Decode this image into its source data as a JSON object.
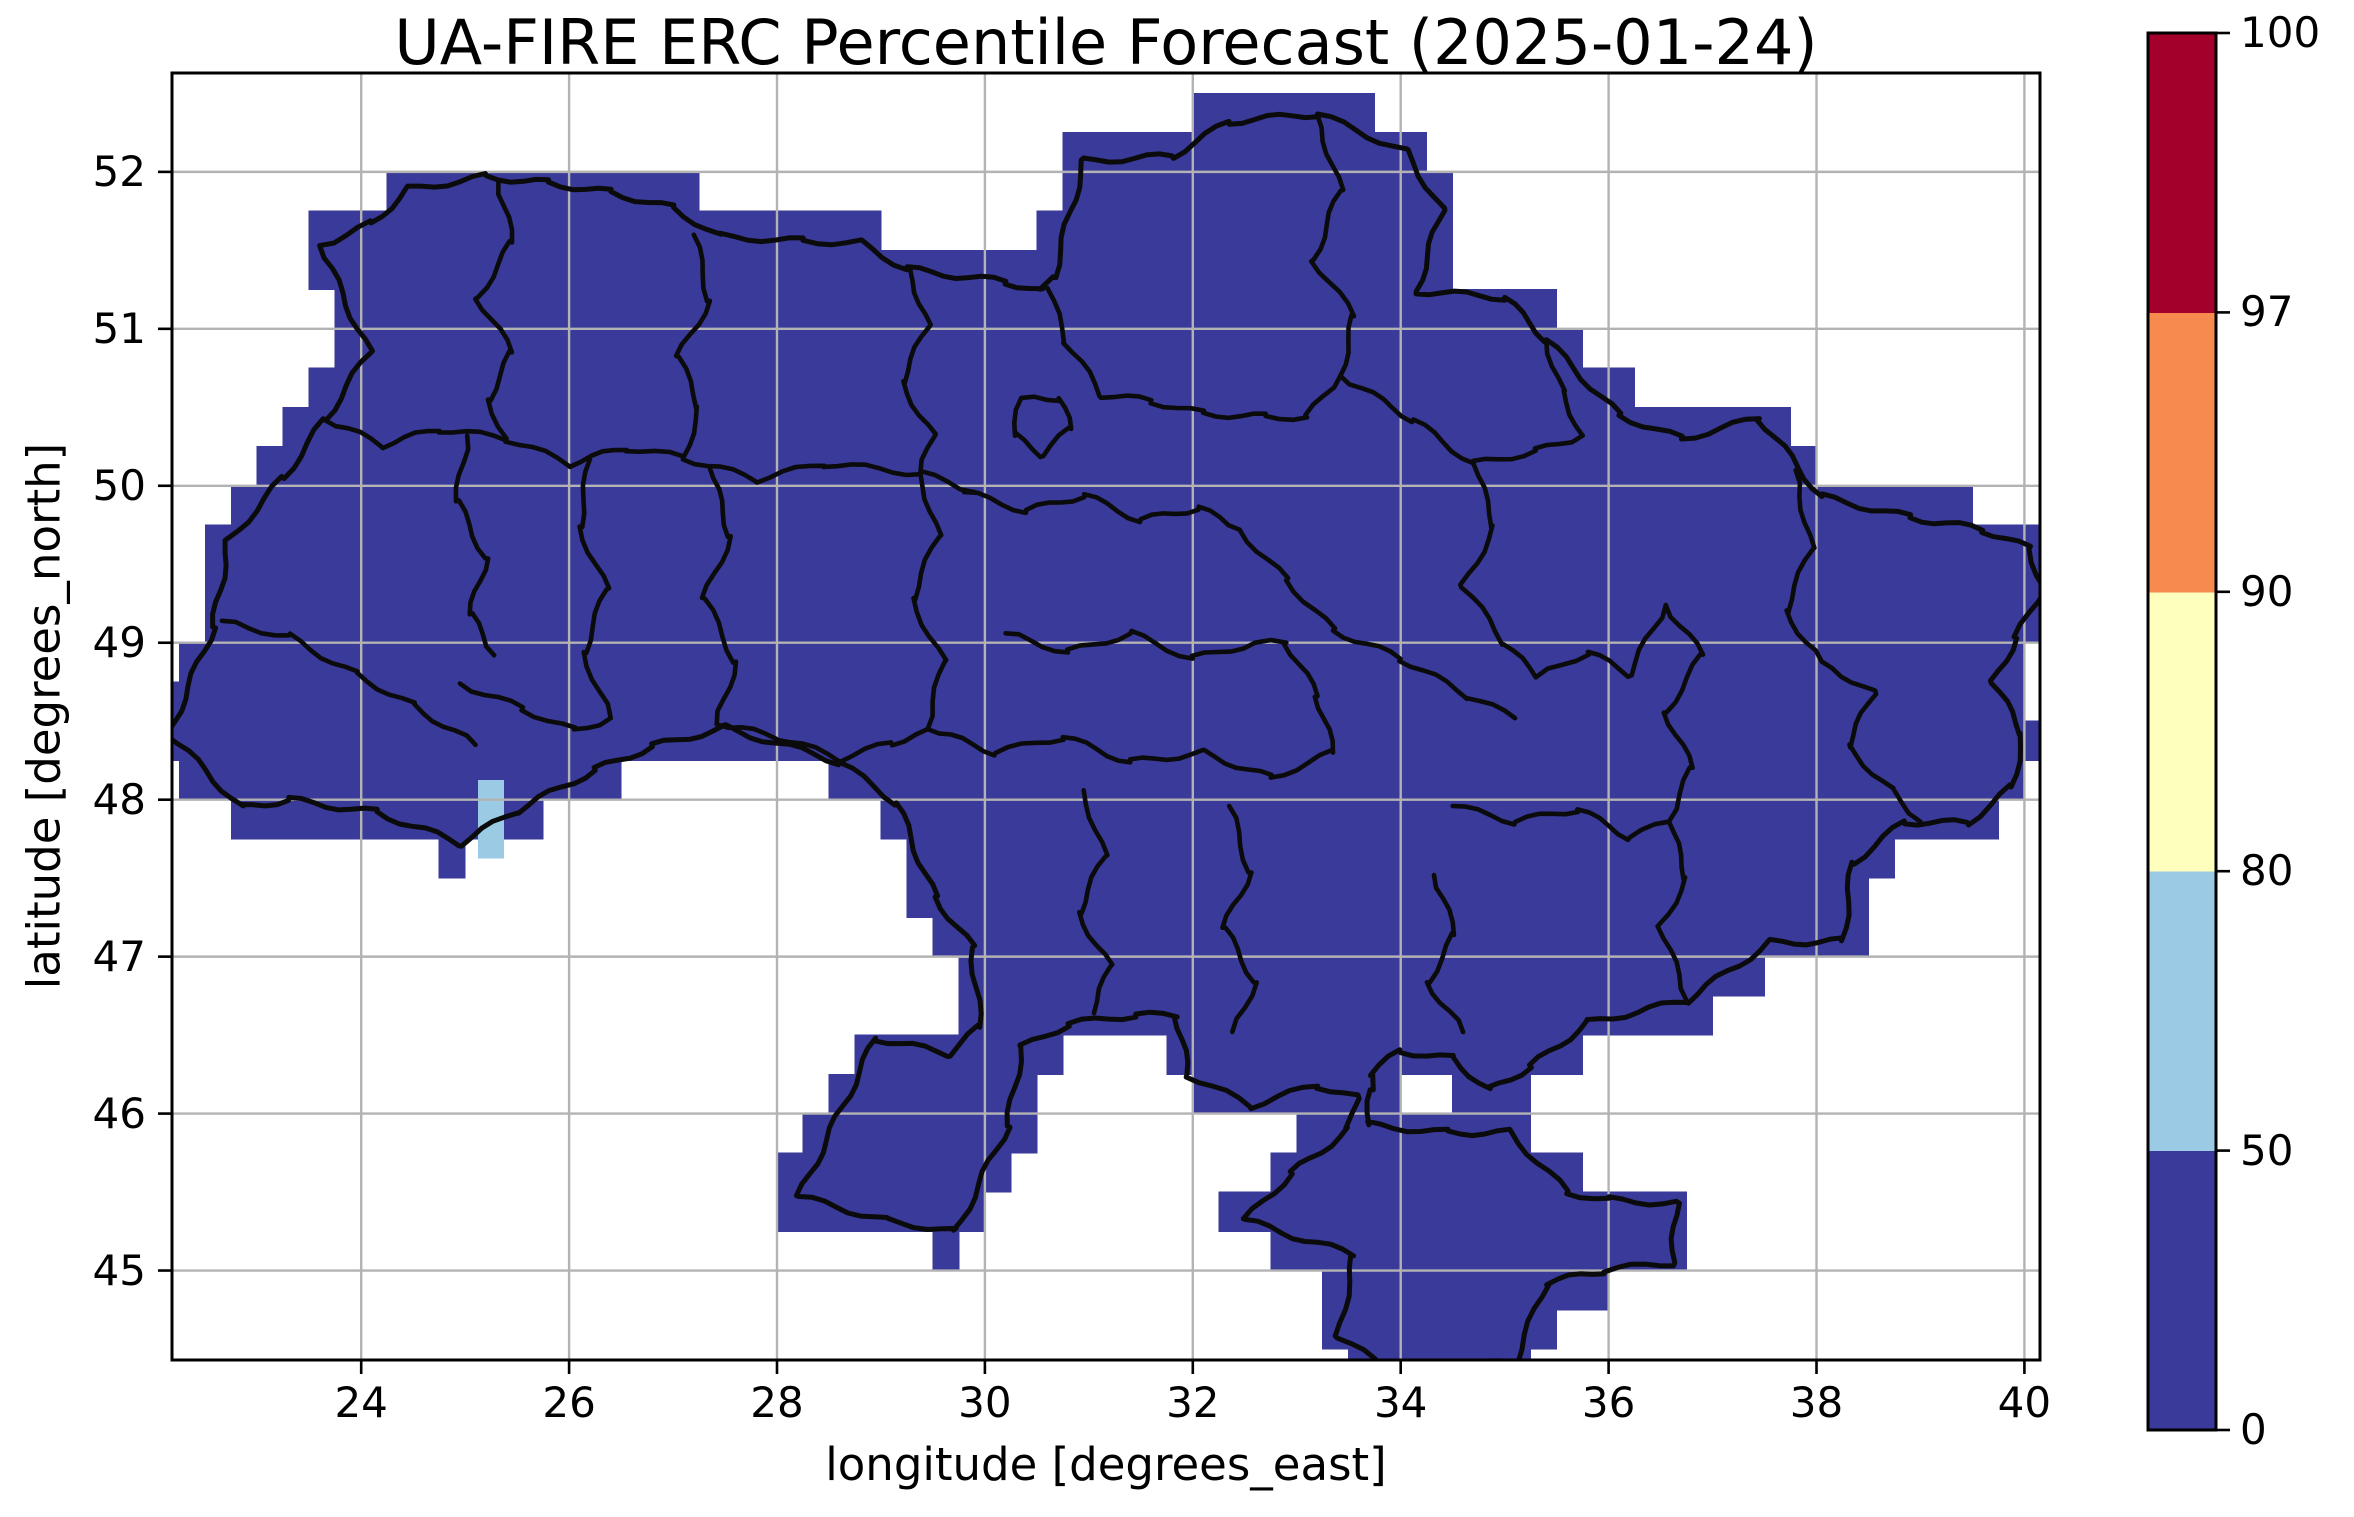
{
  "chart": {
    "title": "UA-FIRE ERC Percentile Forecast (2025-01-24)",
    "xlabel": "longitude [degrees_east]",
    "ylabel": "latitude [degrees_north]"
  },
  "chart_data": {
    "type": "heatmap",
    "title": "UA-FIRE ERC Percentile Forecast (2025-01-24)",
    "xlabel": "longitude [degrees_east]",
    "ylabel": "latitude [degrees_north]",
    "xlim": [
      22.18,
      40.15
    ],
    "ylim": [
      44.43,
      52.63
    ],
    "x_ticks": [
      24,
      26,
      28,
      30,
      32,
      34,
      36,
      38,
      40
    ],
    "y_ticks": [
      52,
      51,
      50,
      49,
      48,
      47,
      46,
      45
    ],
    "grid": true,
    "grid_color": "#b3b3b3",
    "cell_size_deg": 0.25,
    "colorbar": {
      "levels": [
        0,
        50,
        80,
        90,
        97,
        100
      ],
      "tick_labels": [
        "0",
        "50",
        "80",
        "90",
        "97",
        "100"
      ],
      "spacing": "uniform",
      "colors_low_to_high": [
        "#393a9a",
        "#9bcbe4",
        "#ffffbd",
        "#f68a4f",
        "#a3002c"
      ],
      "position": "right"
    },
    "values_summary": "Every 0.25-degree cell over Ukraine lies in the 0-50 percentile bin (dark navy) except two cells near 25.25E / 47.6-48.1N which fall in the 50-80 bin (light blue).",
    "anomaly_cells": [
      {
        "lon_range": [
          25.125,
          25.375
        ],
        "lat_range": [
          47.625,
          47.875
        ],
        "bin": "50-80"
      },
      {
        "lon_range": [
          25.125,
          25.375
        ],
        "lat_range": [
          47.875,
          48.125
        ],
        "bin": "50-80"
      }
    ],
    "base_bin": "0-50",
    "boundary_color": "#0b0b0b",
    "country_outline_lonlat": [
      [
        23.6,
        51.53
      ],
      [
        24.1,
        51.67
      ],
      [
        24.45,
        51.89
      ],
      [
        25.2,
        51.97
      ],
      [
        25.8,
        51.93
      ],
      [
        26.4,
        51.87
      ],
      [
        27.0,
        51.77
      ],
      [
        27.45,
        51.59
      ],
      [
        28.25,
        51.56
      ],
      [
        28.8,
        51.55
      ],
      [
        29.25,
        51.38
      ],
      [
        30.2,
        51.3
      ],
      [
        30.55,
        51.24
      ],
      [
        30.66,
        51.33
      ],
      [
        30.95,
        52.07
      ],
      [
        31.8,
        52.1
      ],
      [
        32.35,
        52.32
      ],
      [
        33.2,
        52.37
      ],
      [
        34.05,
        52.13
      ],
      [
        34.4,
        51.76
      ],
      [
        34.15,
        51.24
      ],
      [
        35.0,
        51.2
      ],
      [
        35.4,
        50.93
      ],
      [
        36.1,
        50.45
      ],
      [
        36.7,
        50.3
      ],
      [
        37.45,
        50.43
      ],
      [
        38.05,
        49.93
      ],
      [
        38.9,
        49.8
      ],
      [
        39.6,
        49.72
      ],
      [
        40.05,
        49.6
      ],
      [
        40.18,
        49.35
      ],
      [
        39.92,
        49.03
      ],
      [
        39.7,
        48.75
      ],
      [
        39.98,
        48.42
      ],
      [
        39.88,
        48.08
      ],
      [
        39.45,
        47.85
      ],
      [
        38.85,
        47.86
      ],
      [
        38.35,
        47.6
      ],
      [
        38.25,
        47.1
      ],
      [
        37.55,
        47.09
      ],
      [
        36.75,
        46.72
      ],
      [
        35.8,
        46.58
      ],
      [
        35.25,
        46.3
      ],
      [
        34.85,
        46.15
      ],
      [
        34.5,
        46.35
      ],
      [
        34.0,
        46.4
      ],
      [
        33.7,
        46.25
      ],
      [
        33.72,
        46.15
      ],
      [
        33.68,
        45.93
      ],
      [
        34.45,
        45.88
      ],
      [
        35.05,
        45.88
      ],
      [
        35.6,
        45.5
      ],
      [
        36.0,
        45.45
      ],
      [
        36.65,
        45.43
      ],
      [
        36.62,
        45.05
      ],
      [
        35.95,
        45.0
      ],
      [
        35.4,
        44.92
      ],
      [
        35.1,
        44.42
      ],
      [
        34.45,
        44.38
      ],
      [
        33.85,
        44.38
      ],
      [
        33.4,
        44.58
      ],
      [
        33.55,
        45.1
      ],
      [
        32.5,
        45.32
      ],
      [
        32.95,
        45.62
      ],
      [
        33.5,
        45.9
      ],
      [
        33.58,
        46.1
      ],
      [
        33.2,
        46.18
      ],
      [
        32.55,
        46.05
      ],
      [
        31.95,
        46.25
      ],
      [
        31.85,
        46.62
      ],
      [
        31.45,
        46.63
      ],
      [
        30.8,
        46.57
      ],
      [
        30.35,
        46.42
      ],
      [
        30.22,
        45.92
      ],
      [
        29.72,
        45.25
      ],
      [
        29.05,
        45.32
      ],
      [
        28.21,
        45.47
      ],
      [
        28.95,
        46.48
      ],
      [
        29.65,
        46.38
      ],
      [
        29.95,
        46.55
      ],
      [
        29.88,
        47.06
      ],
      [
        29.52,
        47.38
      ],
      [
        29.15,
        47.98
      ],
      [
        28.6,
        48.24
      ],
      [
        27.5,
        48.46
      ],
      [
        26.8,
        48.34
      ],
      [
        26.25,
        48.19
      ],
      [
        25.5,
        47.93
      ],
      [
        24.95,
        47.72
      ],
      [
        24.15,
        47.92
      ],
      [
        23.3,
        48.0
      ],
      [
        22.85,
        47.95
      ],
      [
        22.15,
        48.42
      ],
      [
        22.58,
        49.1
      ],
      [
        22.72,
        49.65
      ],
      [
        23.25,
        50.05
      ],
      [
        23.65,
        50.42
      ],
      [
        24.08,
        50.85
      ],
      [
        23.6,
        51.53
      ]
    ],
    "admin_boundaries_lonlat": [
      [
        [
          25.32,
          51.94
        ],
        [
          25.45,
          51.55
        ],
        [
          25.12,
          51.2
        ],
        [
          25.45,
          50.85
        ],
        [
          25.22,
          50.55
        ],
        [
          25.4,
          50.3
        ]
      ],
      [
        [
          27.2,
          51.6
        ],
        [
          27.35,
          51.18
        ],
        [
          27.05,
          50.82
        ],
        [
          27.25,
          50.5
        ],
        [
          27.1,
          50.18
        ]
      ],
      [
        [
          29.28,
          51.38
        ],
        [
          29.45,
          51.02
        ],
        [
          29.2,
          50.66
        ],
        [
          29.5,
          50.32
        ],
        [
          29.38,
          50.08
        ]
      ],
      [
        [
          23.65,
          50.42
        ],
        [
          24.2,
          50.26
        ],
        [
          24.75,
          50.36
        ],
        [
          25.4,
          50.3
        ],
        [
          26.0,
          50.14
        ],
        [
          26.55,
          50.24
        ],
        [
          27.1,
          50.18
        ],
        [
          27.8,
          50.04
        ],
        [
          28.45,
          50.14
        ],
        [
          29.38,
          50.08
        ],
        [
          29.9,
          49.96
        ]
      ],
      [
        [
          25.02,
          50.32
        ],
        [
          24.92,
          49.9
        ],
        [
          25.2,
          49.54
        ],
        [
          25.05,
          49.18
        ],
        [
          25.28,
          48.92
        ]
      ],
      [
        [
          26.2,
          50.17
        ],
        [
          26.1,
          49.74
        ],
        [
          26.36,
          49.34
        ],
        [
          26.14,
          48.94
        ],
        [
          26.4,
          48.52
        ]
      ],
      [
        [
          27.35,
          50.12
        ],
        [
          27.55,
          49.68
        ],
        [
          27.3,
          49.28
        ],
        [
          27.6,
          48.88
        ],
        [
          27.42,
          48.48
        ]
      ],
      [
        [
          22.66,
          49.14
        ],
        [
          23.3,
          49.04
        ],
        [
          23.95,
          48.8
        ],
        [
          24.5,
          48.6
        ],
        [
          25.1,
          48.35
        ]
      ],
      [
        [
          24.95,
          48.74
        ],
        [
          25.55,
          48.58
        ],
        [
          26.05,
          48.44
        ],
        [
          26.4,
          48.52
        ]
      ],
      [
        [
          30.6,
          51.26
        ],
        [
          30.78,
          50.92
        ],
        [
          31.12,
          50.58
        ],
        [
          31.6,
          50.54
        ],
        [
          32.1,
          50.46
        ],
        [
          32.7,
          50.44
        ],
        [
          33.1,
          50.44
        ],
        [
          33.42,
          50.7
        ]
      ],
      [
        [
          33.2,
          52.36
        ],
        [
          33.42,
          51.88
        ],
        [
          33.16,
          51.44
        ],
        [
          33.55,
          51.08
        ],
        [
          33.42,
          50.7
        ]
      ],
      [
        [
          33.42,
          50.7
        ],
        [
          34.12,
          50.42
        ],
        [
          34.7,
          50.14
        ],
        [
          35.3,
          50.22
        ],
        [
          35.75,
          50.32
        ]
      ],
      [
        [
          29.8,
          49.96
        ],
        [
          30.4,
          49.84
        ],
        [
          30.95,
          49.94
        ],
        [
          31.5,
          49.78
        ],
        [
          32.05,
          49.86
        ],
        [
          32.45,
          49.72
        ]
      ],
      [
        [
          29.38,
          50.08
        ],
        [
          29.55,
          49.68
        ],
        [
          29.3,
          49.28
        ],
        [
          29.6,
          48.88
        ],
        [
          29.45,
          48.45
        ]
      ],
      [
        [
          27.42,
          48.48
        ],
        [
          28.0,
          48.4
        ],
        [
          28.6,
          48.26
        ],
        [
          29.1,
          48.36
        ],
        [
          29.45,
          48.45
        ]
      ],
      [
        [
          30.2,
          49.06
        ],
        [
          30.8,
          48.94
        ],
        [
          31.4,
          49.06
        ],
        [
          32.0,
          48.9
        ],
        [
          32.6,
          49.0
        ]
      ],
      [
        [
          32.45,
          49.72
        ],
        [
          32.9,
          49.4
        ],
        [
          33.35,
          49.08
        ],
        [
          34.0,
          48.9
        ],
        [
          34.65,
          48.66
        ],
        [
          35.1,
          48.52
        ]
      ],
      [
        [
          34.7,
          50.14
        ],
        [
          34.9,
          49.74
        ],
        [
          34.6,
          49.36
        ],
        [
          35.0,
          49.0
        ],
        [
          35.3,
          48.78
        ]
      ],
      [
        [
          37.8,
          50.1
        ],
        [
          37.95,
          49.6
        ],
        [
          37.7,
          49.2
        ],
        [
          38.05,
          48.88
        ]
      ],
      [
        [
          36.55,
          49.24
        ],
        [
          36.9,
          48.92
        ],
        [
          36.55,
          48.56
        ],
        [
          36.8,
          48.2
        ],
        [
          36.58,
          47.86
        ]
      ],
      [
        [
          34.5,
          47.96
        ],
        [
          35.1,
          47.86
        ],
        [
          35.7,
          47.94
        ],
        [
          36.2,
          47.76
        ],
        [
          36.58,
          47.86
        ]
      ],
      [
        [
          38.05,
          48.88
        ],
        [
          38.55,
          48.68
        ],
        [
          38.3,
          48.34
        ],
        [
          38.72,
          48.06
        ],
        [
          39.0,
          47.86
        ]
      ],
      [
        [
          34.32,
          47.52
        ],
        [
          34.52,
          47.14
        ],
        [
          34.26,
          46.84
        ],
        [
          34.6,
          46.52
        ]
      ],
      [
        [
          32.35,
          47.96
        ],
        [
          32.55,
          47.54
        ],
        [
          32.3,
          47.18
        ],
        [
          32.6,
          46.84
        ],
        [
          32.38,
          46.52
        ]
      ],
      [
        [
          30.95,
          48.06
        ],
        [
          31.15,
          47.64
        ],
        [
          30.9,
          47.28
        ],
        [
          31.2,
          46.94
        ],
        [
          31.05,
          46.64
        ]
      ],
      [
        [
          29.45,
          48.45
        ],
        [
          30.1,
          48.3
        ],
        [
          30.75,
          48.4
        ],
        [
          31.4,
          48.24
        ],
        [
          32.1,
          48.3
        ],
        [
          32.75,
          48.14
        ],
        [
          33.35,
          48.3
        ],
        [
          33.2,
          48.66
        ],
        [
          32.9,
          49.0
        ],
        [
          32.6,
          49.0
        ]
      ],
      [
        [
          35.3,
          48.78
        ],
        [
          35.8,
          48.94
        ],
        [
          36.2,
          48.8
        ],
        [
          36.55,
          49.24
        ]
      ],
      [
        [
          35.4,
          50.93
        ],
        [
          35.55,
          50.6
        ],
        [
          35.75,
          50.32
        ]
      ],
      [
        [
          36.58,
          47.86
        ],
        [
          36.75,
          47.5
        ],
        [
          36.5,
          47.2
        ],
        [
          36.75,
          46.72
        ]
      ],
      [
        [
          30.35,
          50.56
        ],
        [
          30.72,
          50.56
        ],
        [
          30.82,
          50.36
        ],
        [
          30.55,
          50.2
        ],
        [
          30.28,
          50.32
        ],
        [
          30.35,
          50.56
        ]
      ]
    ]
  }
}
